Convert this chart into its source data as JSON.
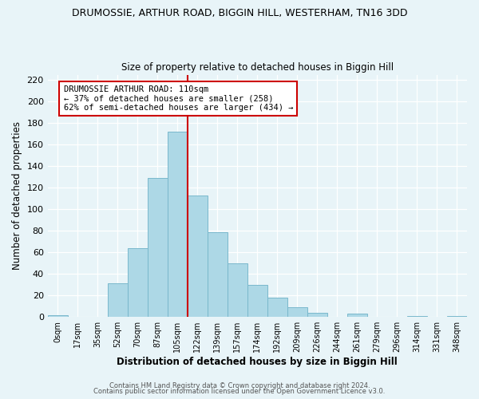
{
  "title": "DRUMOSSIE, ARTHUR ROAD, BIGGIN HILL, WESTERHAM, TN16 3DD",
  "subtitle": "Size of property relative to detached houses in Biggin Hill",
  "xlabel": "Distribution of detached houses by size in Biggin Hill",
  "ylabel": "Number of detached properties",
  "bar_labels": [
    "0sqm",
    "17sqm",
    "35sqm",
    "52sqm",
    "70sqm",
    "87sqm",
    "105sqm",
    "122sqm",
    "139sqm",
    "157sqm",
    "174sqm",
    "192sqm",
    "209sqm",
    "226sqm",
    "244sqm",
    "261sqm",
    "279sqm",
    "296sqm",
    "314sqm",
    "331sqm",
    "348sqm"
  ],
  "bar_heights": [
    2,
    0,
    0,
    31,
    64,
    129,
    172,
    113,
    79,
    50,
    30,
    18,
    9,
    4,
    0,
    3,
    0,
    0,
    1,
    0,
    1
  ],
  "bar_color": "#add8e6",
  "bar_edge_color": "#7ab8cc",
  "vline_x": 6.5,
  "vline_color": "#cc0000",
  "annotation_title": "DRUMOSSIE ARTHUR ROAD: 110sqm",
  "annotation_line1": "← 37% of detached houses are smaller (258)",
  "annotation_line2": "62% of semi-detached houses are larger (434) →",
  "annotation_box_color": "#ffffff",
  "annotation_box_edge": "#cc0000",
  "ylim": [
    0,
    225
  ],
  "yticks": [
    0,
    20,
    40,
    60,
    80,
    100,
    120,
    140,
    160,
    180,
    200,
    220
  ],
  "footer1": "Contains HM Land Registry data © Crown copyright and database right 2024.",
  "footer2": "Contains public sector information licensed under the Open Government Licence v3.0.",
  "bg_color": "#e8f4f8",
  "plot_bg_color": "#e8f4f8"
}
